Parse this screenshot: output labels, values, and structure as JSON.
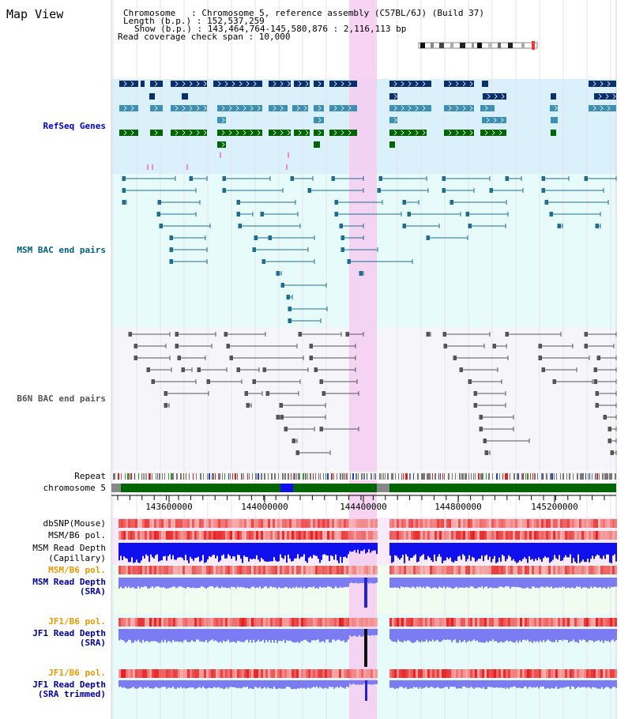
{
  "header": {
    "title": "Map View",
    "chromosome_line": "Chromosome   : Chromosome 5, reference assembly (C57BL/6J) (Build 37)",
    "length_line": "Length (b.p.) : 152,537,259",
    "show_line": "Show (b.p.) : 143,464,764-145,580,876 : 2,116,113 bp",
    "coverage_line": "Read coverage check span : 10,000"
  },
  "tracks": {
    "refseq": "RefSeq Genes",
    "msm_bac": "MSM BAC end pairs",
    "b6n_bac": "B6N BAC end pairs",
    "repeat": "Repeat",
    "chromosome": "chromosome 5",
    "dbsnp": "dbSNP(Mouse)",
    "msm_b6_pol_1": "MSM/B6 pol.",
    "msm_depth_cap_1": "MSM Read Depth",
    "msm_depth_cap_2": "(Capillary)",
    "msm_b6_pol_2": "MSM/B6 pol.",
    "msm_depth_sra_1": "MSM Read Depth",
    "msm_depth_sra_2": "(SRA)",
    "jf1_pol_1": "JF1/B6 pol.",
    "jf1_depth_1": "JF1 Read Depth",
    "jf1_depth_2": "(SRA)",
    "jf1_pol_2": "JF1/B6 pol.",
    "jf1_trim_1": "JF1 Read Depth",
    "jf1_trim_2": "(SRA trimmed)"
  },
  "ruler": {
    "ticks": [
      "143600000",
      "144000000",
      "144400000",
      "144800000",
      "145200000"
    ]
  },
  "colors": {
    "refseq_label": "#0000cc",
    "msm_label": "#006080",
    "b6n_label": "#555555",
    "orange_label": "#e69900",
    "blue_label": "#000099",
    "highlight": "#f4ccf0",
    "gene_dark": "#0a2f6b",
    "gene_mid": "#3d8fb5",
    "gene_green": "#006400",
    "msm_pair": "#1f6d8f",
    "b6n_pair": "#555555",
    "depth_blue": "#1010ee",
    "depth_lavender": "#7c7cf2"
  }
}
